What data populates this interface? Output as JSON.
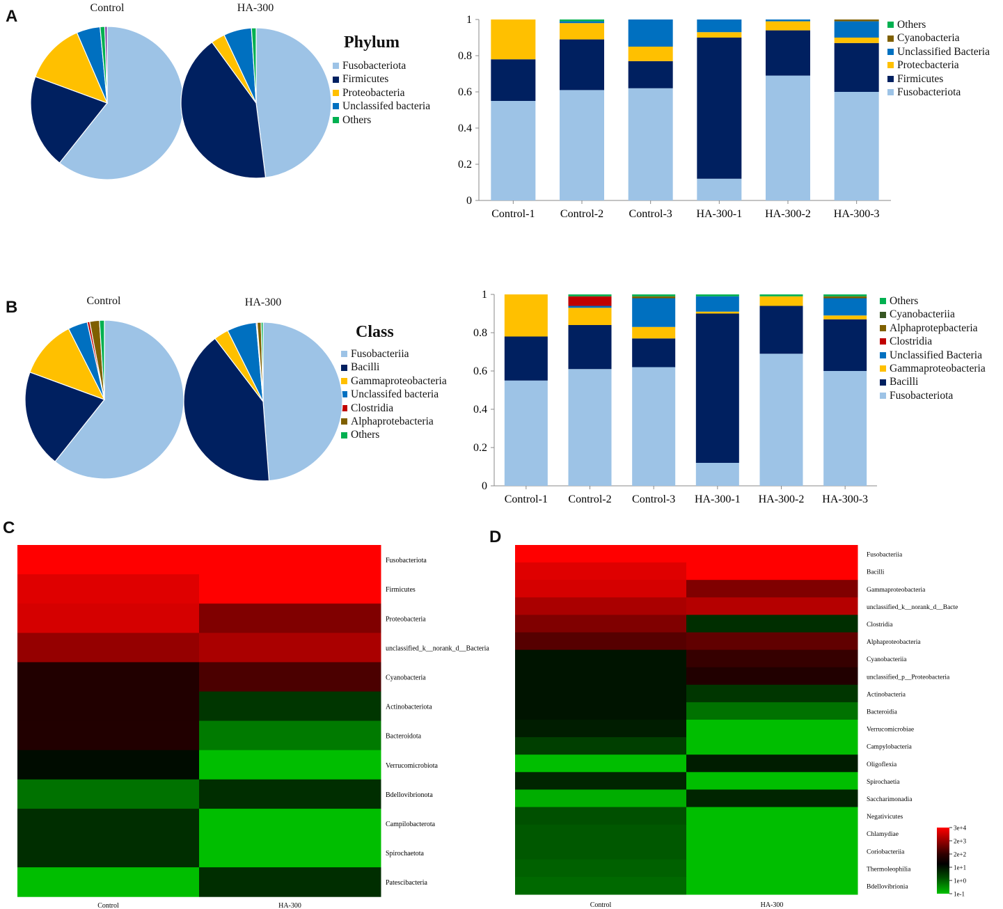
{
  "panels": {
    "a": "A",
    "b": "B",
    "c": "C",
    "d": "D"
  },
  "chart_data": [
    {
      "id": "A-pie",
      "type": "pie",
      "title": "Phylum",
      "pies": [
        {
          "name": "Control",
          "values": [
            0.61,
            0.2,
            0.13,
            0.05,
            0.01
          ]
        },
        {
          "name": "HA-300",
          "values": [
            0.48,
            0.42,
            0.03,
            0.06,
            0.01
          ]
        }
      ],
      "labels": [
        "Fusobacteriota",
        "Firmicutes",
        "Proteobacteria",
        "Unclassifed bacteria",
        "Others"
      ],
      "colors": [
        "#9dc3e6",
        "#002060",
        "#ffc000",
        "#0070c0",
        "#00b050"
      ],
      "extra_slices": [
        {
          "pie": 0,
          "value": 0.005,
          "color": "#7030a0"
        }
      ]
    },
    {
      "id": "A-bar",
      "type": "bar",
      "stacked": true,
      "categories": [
        "Control-1",
        "Control-2",
        "Control-3",
        "HA-300-1",
        "HA-300-2",
        "HA-300-3"
      ],
      "series": [
        {
          "name": "Fusobacteriota",
          "color": "#9dc3e6",
          "values": [
            0.55,
            0.61,
            0.62,
            0.12,
            0.69,
            0.6
          ]
        },
        {
          "name": "Firmicutes",
          "color": "#002060",
          "values": [
            0.23,
            0.28,
            0.15,
            0.78,
            0.25,
            0.27
          ]
        },
        {
          "name": "Protecbacteria",
          "color": "#ffc000",
          "values": [
            0.22,
            0.09,
            0.08,
            0.03,
            0.05,
            0.03
          ]
        },
        {
          "name": "Unclassified Bacteria",
          "color": "#0070c0",
          "values": [
            0.0,
            0.01,
            0.15,
            0.07,
            0.01,
            0.09
          ]
        },
        {
          "name": "Cyanobacteria",
          "color": "#7f6000",
          "values": [
            0.0,
            0.0,
            0.0,
            0.0,
            0.0,
            0.01
          ]
        },
        {
          "name": "Others",
          "color": "#00b050",
          "values": [
            0.0,
            0.01,
            0.0,
            0.0,
            0.0,
            0.0
          ]
        }
      ],
      "legend_order": [
        "Others",
        "Cyanobacteria",
        "Unclassified Bacteria",
        "Protecbacteria",
        "Firmicutes",
        "Fusobacteriota"
      ],
      "yticks": [
        "0",
        "0.2",
        "0.4",
        "0.6",
        "0.8",
        "1"
      ],
      "ylim": [
        0,
        1
      ]
    },
    {
      "id": "B-pie",
      "type": "pie",
      "title": "Class",
      "pies": [
        {
          "name": "Control",
          "values": [
            0.61,
            0.2,
            0.12,
            0.04,
            0.005,
            0.02,
            0.01
          ]
        },
        {
          "name": "HA-300",
          "values": [
            0.49,
            0.41,
            0.03,
            0.06,
            0.002,
            0.008,
            0.004
          ]
        }
      ],
      "labels": [
        "Fusobacteriia",
        "Bacilli",
        "Gammaproteobacteria",
        "Unclassifed bacteria",
        "Clostridia",
        "Alphaprotebacteria",
        "Others"
      ],
      "colors": [
        "#9dc3e6",
        "#002060",
        "#ffc000",
        "#0070c0",
        "#c00000",
        "#7f6000",
        "#00b050"
      ]
    },
    {
      "id": "B-bar",
      "type": "bar",
      "stacked": true,
      "categories": [
        "Control-1",
        "Control-2",
        "Control-3",
        "HA-300-1",
        "HA-300-2",
        "HA-300-3"
      ],
      "series": [
        {
          "name": "Fusobacteriota",
          "color": "#9dc3e6",
          "values": [
            0.55,
            0.61,
            0.62,
            0.12,
            0.69,
            0.6
          ]
        },
        {
          "name": "Bacilli",
          "color": "#002060",
          "values": [
            0.23,
            0.23,
            0.15,
            0.78,
            0.25,
            0.27
          ]
        },
        {
          "name": "Gammaproteobacteria",
          "color": "#ffc000",
          "values": [
            0.22,
            0.09,
            0.06,
            0.01,
            0.05,
            0.02
          ]
        },
        {
          "name": "Unclassified Bacteria",
          "color": "#0070c0",
          "values": [
            0.0,
            0.01,
            0.15,
            0.08,
            0.0,
            0.09
          ]
        },
        {
          "name": "Clostridia",
          "color": "#c00000",
          "values": [
            0.0,
            0.05,
            0.0,
            0.0,
            0.0,
            0.0
          ]
        },
        {
          "name": "Alphaprotepbacteria",
          "color": "#7f6000",
          "values": [
            0.0,
            0.0,
            0.01,
            0.0,
            0.0,
            0.01
          ]
        },
        {
          "name": "Cyanobacteriia",
          "color": "#375623",
          "values": [
            0.0,
            0.0,
            0.0,
            0.0,
            0.0,
            0.0
          ]
        },
        {
          "name": "Others",
          "color": "#00b050",
          "values": [
            0.0,
            0.01,
            0.01,
            0.01,
            0.01,
            0.01
          ]
        }
      ],
      "legend_order": [
        "Others",
        "Cyanobacteriia",
        "Alphaprotepbacteria",
        "Clostridia",
        "Unclassified Bacteria",
        "Gammaproteobacteria",
        "Bacilli",
        "Fusobacteriota"
      ],
      "yticks": [
        "0",
        "0.2",
        "0.4",
        "0.6",
        "0.8",
        "1"
      ],
      "ylim": [
        0,
        1
      ]
    },
    {
      "id": "C-heatmap",
      "type": "heatmap",
      "columns": [
        "Control",
        "HA-300"
      ],
      "rows": [
        "Fusobacteriota",
        "Firmicutes",
        "Proteobacteria",
        "unclassified_k__norank_d__Bacteria",
        "Cyanobacteria",
        "Actinobacteriota",
        "Bacteroidota",
        "Verrucomicrobiota",
        "Bdellovibrionota",
        "Campilobacterota",
        "Spirochaetota",
        "Patescibacteria"
      ],
      "color_scale": "green-black-red",
      "values": [
        [
          4.4,
          4.4
        ],
        [
          4.1,
          4.4
        ],
        [
          4.0,
          3.2
        ],
        [
          3.4,
          3.6
        ],
        [
          2.3,
          2.7
        ],
        [
          2.3,
          1.6
        ],
        [
          2.3,
          0.8
        ],
        [
          2.1,
          0.0
        ],
        [
          0.9,
          1.7
        ],
        [
          1.7,
          0.0
        ],
        [
          1.7,
          0.0
        ],
        [
          0.0,
          1.7
        ]
      ]
    },
    {
      "id": "D-heatmap",
      "type": "heatmap",
      "columns": [
        "Control",
        "HA-300"
      ],
      "rows": [
        "Fusobacteriia",
        "Bacilli",
        "Gammaproteobacteria",
        "unclassified_k__norank_d__Bacteria",
        "Clostridia",
        "Alphaproteobacteria",
        "Cyanobacteriia",
        "unclassified_p__Proteobacteria",
        "Actinobacteria",
        "Bacteroidia",
        "Verrucomicrobiae",
        "Campylobacteria",
        "Oligoflexia",
        "Spirochaetia",
        "Saccharimonadia",
        "Negativicutes",
        "Chlamydiae",
        "Coriobacteriia",
        "Thermoleophilia",
        "Bdellovibrionia"
      ],
      "row_label_display": [
        "Fusobacteriia",
        "Bacilli",
        "Gammaproteobacteria",
        "unclassified_k__norank_d__Bacte",
        "Clostridia",
        "Alphaproteobacteria",
        "Cyanobacteriia",
        "unclassified_p__Proteobacteria",
        "Actinobacteria",
        "Bacteroidia",
        "Verrucomicrobiae",
        "Campylobacteria",
        "Oligoflexia",
        "Spirochaetia",
        "Saccharimonadia",
        "Negativicutes",
        "Chlamydiae",
        "Coriobacteriia",
        "Thermoleophilia",
        "Bdellovibrionia"
      ],
      "color_scale": "green-black-red",
      "values": [
        [
          4.4,
          4.4
        ],
        [
          4.1,
          4.4
        ],
        [
          4.0,
          3.2
        ],
        [
          3.6,
          3.7
        ],
        [
          3.2,
          1.7
        ],
        [
          2.8,
          2.9
        ],
        [
          2.0,
          2.5
        ],
        [
          2.0,
          2.3
        ],
        [
          2.0,
          1.6
        ],
        [
          2.0,
          0.9
        ],
        [
          1.9,
          0.0
        ],
        [
          1.5,
          0.0
        ],
        [
          0.0,
          1.9
        ],
        [
          1.8,
          0.0
        ],
        [
          0.2,
          1.8
        ],
        [
          1.3,
          0.0
        ],
        [
          1.2,
          0.0
        ],
        [
          1.2,
          0.0
        ],
        [
          1.1,
          0.0
        ],
        [
          1.0,
          0.0
        ]
      ],
      "colorbar": {
        "labels": [
          "3e+4",
          "2e+3",
          "2e+2",
          "1e+1",
          "1e+0",
          "1e-1"
        ]
      }
    }
  ]
}
